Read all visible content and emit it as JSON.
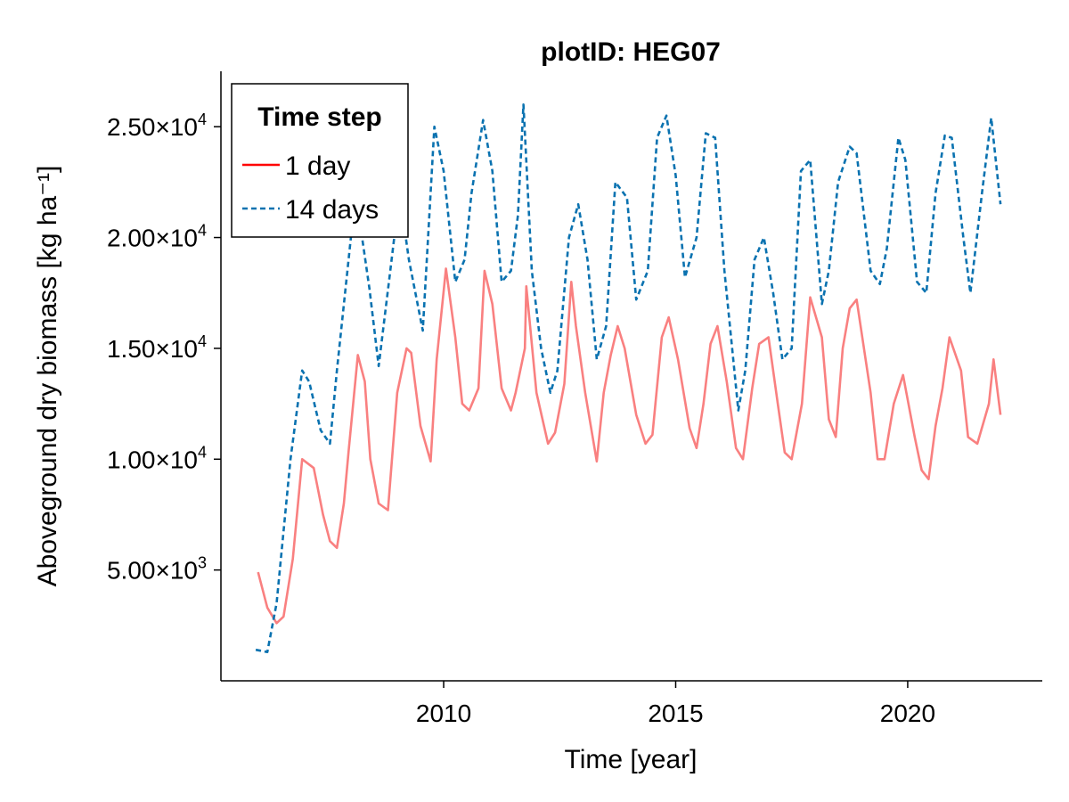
{
  "chart_data": {
    "type": "line",
    "title": "plotID: HEG07",
    "xlabel": "Time [year]",
    "ylabel": "Aboveground dry biomass [kg ha⁻¹]",
    "xlim": [
      2005.2,
      2022.9
    ],
    "ylim": [
      0,
      27500
    ],
    "grid": false,
    "legend": {
      "title": "Time step",
      "placement": "top-left"
    },
    "x_ticks": [
      {
        "value": 2010,
        "label": "2010"
      },
      {
        "value": 2015,
        "label": "2015"
      },
      {
        "value": 2020,
        "label": "2020"
      }
    ],
    "y_ticks": [
      {
        "value": 5000,
        "mant": "5.00×10",
        "exp": "3"
      },
      {
        "value": 10000,
        "mant": "1.00×10",
        "exp": "4"
      },
      {
        "value": 15000,
        "mant": "1.50×10",
        "exp": "4"
      },
      {
        "value": 20000,
        "mant": "2.00×10",
        "exp": "4"
      },
      {
        "value": 25000,
        "mant": "2.50×10",
        "exp": "4"
      }
    ],
    "series": [
      {
        "name": "1 day",
        "color": "#f98080",
        "legend_color": "#ff0000",
        "style": "solid",
        "x": [
          2006.0,
          2006.2,
          2006.4,
          2006.55,
          2006.75,
          2006.95,
          2007.2,
          2007.4,
          2007.55,
          2007.7,
          2007.85,
          2007.95,
          2008.15,
          2008.3,
          2008.42,
          2008.6,
          2008.8,
          2009.0,
          2009.2,
          2009.3,
          2009.5,
          2009.72,
          2009.85,
          2010.05,
          2010.25,
          2010.4,
          2010.55,
          2010.75,
          2010.88,
          2011.05,
          2011.25,
          2011.45,
          2011.55,
          2011.75,
          2011.78,
          2012.0,
          2012.25,
          2012.4,
          2012.6,
          2012.75,
          2012.85,
          2013.05,
          2013.3,
          2013.45,
          2013.6,
          2013.75,
          2013.9,
          2014.15,
          2014.35,
          2014.5,
          2014.7,
          2014.85,
          2015.05,
          2015.3,
          2015.45,
          2015.6,
          2015.75,
          2015.9,
          2016.1,
          2016.3,
          2016.45,
          2016.65,
          2016.8,
          2017.0,
          2017.2,
          2017.35,
          2017.5,
          2017.72,
          2017.9,
          2018.15,
          2018.3,
          2018.45,
          2018.6,
          2018.75,
          2018.9,
          2019.2,
          2019.35,
          2019.5,
          2019.7,
          2019.9,
          2020.15,
          2020.3,
          2020.45,
          2020.6,
          2020.75,
          2020.9,
          2021.15,
          2021.3,
          2021.5,
          2021.75,
          2021.85,
          2022.0
        ],
        "y": [
          4900,
          3300,
          2600,
          2900,
          5500,
          10000,
          9600,
          7500,
          6300,
          6000,
          8000,
          10300,
          14700,
          13500,
          10000,
          8000,
          7700,
          13000,
          15000,
          14800,
          11500,
          9900,
          14500,
          18600,
          15500,
          12500,
          12200,
          13200,
          18500,
          17000,
          13200,
          12200,
          13000,
          15000,
          17800,
          13000,
          10700,
          11200,
          13400,
          18000,
          16000,
          13000,
          9900,
          13000,
          14700,
          16000,
          15000,
          12000,
          10700,
          11100,
          15500,
          16400,
          14500,
          11400,
          10500,
          12500,
          15200,
          16000,
          13500,
          10500,
          10000,
          13200,
          15200,
          15500,
          12500,
          10300,
          10000,
          12500,
          17300,
          15500,
          11800,
          11000,
          15000,
          16800,
          17200,
          13000,
          10000,
          10000,
          12500,
          13800,
          11000,
          9500,
          9100,
          11500,
          13200,
          15500,
          14000,
          11000,
          10700,
          12500,
          14500,
          12000
        ]
      },
      {
        "name": "14 days",
        "color": "#0a72b0",
        "legend_color": "#0a72b0",
        "style": "dashed",
        "x": [
          2005.95,
          2006.2,
          2006.4,
          2006.7,
          2006.95,
          2007.1,
          2007.35,
          2007.55,
          2007.7,
          2008.0,
          2008.2,
          2008.4,
          2008.6,
          2008.85,
          2009.05,
          2009.25,
          2009.55,
          2009.8,
          2010.0,
          2010.25,
          2010.45,
          2010.6,
          2010.85,
          2011.05,
          2011.25,
          2011.45,
          2011.6,
          2011.72,
          2011.9,
          2012.1,
          2012.3,
          2012.45,
          2012.7,
          2012.9,
          2013.1,
          2013.3,
          2013.5,
          2013.7,
          2013.95,
          2014.15,
          2014.4,
          2014.6,
          2014.8,
          2015.0,
          2015.2,
          2015.45,
          2015.65,
          2015.85,
          2016.05,
          2016.35,
          2016.5,
          2016.7,
          2016.9,
          2017.1,
          2017.3,
          2017.5,
          2017.7,
          2017.9,
          2018.15,
          2018.3,
          2018.5,
          2018.75,
          2018.9,
          2019.2,
          2019.4,
          2019.55,
          2019.8,
          2019.95,
          2020.2,
          2020.4,
          2020.6,
          2020.8,
          2020.95,
          2021.2,
          2021.35,
          2021.6,
          2021.8,
          2022.0
        ],
        "y": [
          1400,
          1300,
          3500,
          10000,
          14000,
          13500,
          11300,
          10700,
          14000,
          20000,
          20600,
          17700,
          14200,
          18500,
          22000,
          19000,
          15800,
          25000,
          23000,
          18000,
          19000,
          22000,
          25300,
          23000,
          18000,
          18500,
          21000,
          26000,
          18500,
          15000,
          13000,
          14000,
          20000,
          21500,
          19000,
          14500,
          16000,
          22500,
          21800,
          17200,
          18500,
          24500,
          25500,
          22800,
          18200,
          20000,
          24700,
          24500,
          18500,
          12200,
          14000,
          19000,
          20000,
          17500,
          14500,
          15000,
          23000,
          23500,
          17000,
          18500,
          22500,
          24100,
          23800,
          18500,
          17900,
          19500,
          24500,
          23500,
          18000,
          17500,
          22000,
          24600,
          24500,
          20000,
          17500,
          22000,
          25400,
          21500
        ]
      }
    ]
  }
}
